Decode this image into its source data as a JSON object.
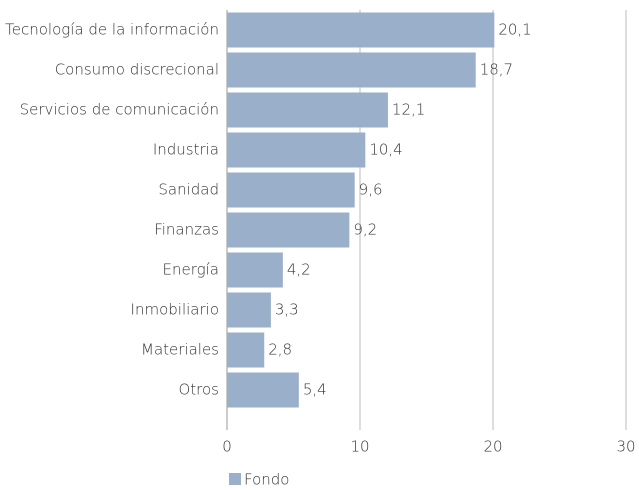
{
  "chart_data": {
    "type": "bar",
    "orientation": "horizontal",
    "categories": [
      "Tecnología de la información",
      "Consumo discrecional",
      "Servicios de comunicación",
      "Industria",
      "Sanidad",
      "Finanzas",
      "Energía",
      "Inmobiliario",
      "Materiales",
      "Otros"
    ],
    "series": [
      {
        "name": "Fondo",
        "color": "#9aafca",
        "values": [
          20.1,
          18.7,
          12.1,
          10.4,
          9.6,
          9.2,
          4.2,
          3.3,
          2.8,
          5.4
        ],
        "value_labels": [
          "20,1",
          "18,7",
          "12,1",
          "10,4",
          "9,6",
          "9,2",
          "4,2",
          "3,3",
          "2,8",
          "5,4"
        ]
      }
    ],
    "xlim": [
      0,
      30
    ],
    "xticks": [
      0,
      10,
      20,
      30
    ],
    "grid": true,
    "legend": "bottom-left"
  }
}
